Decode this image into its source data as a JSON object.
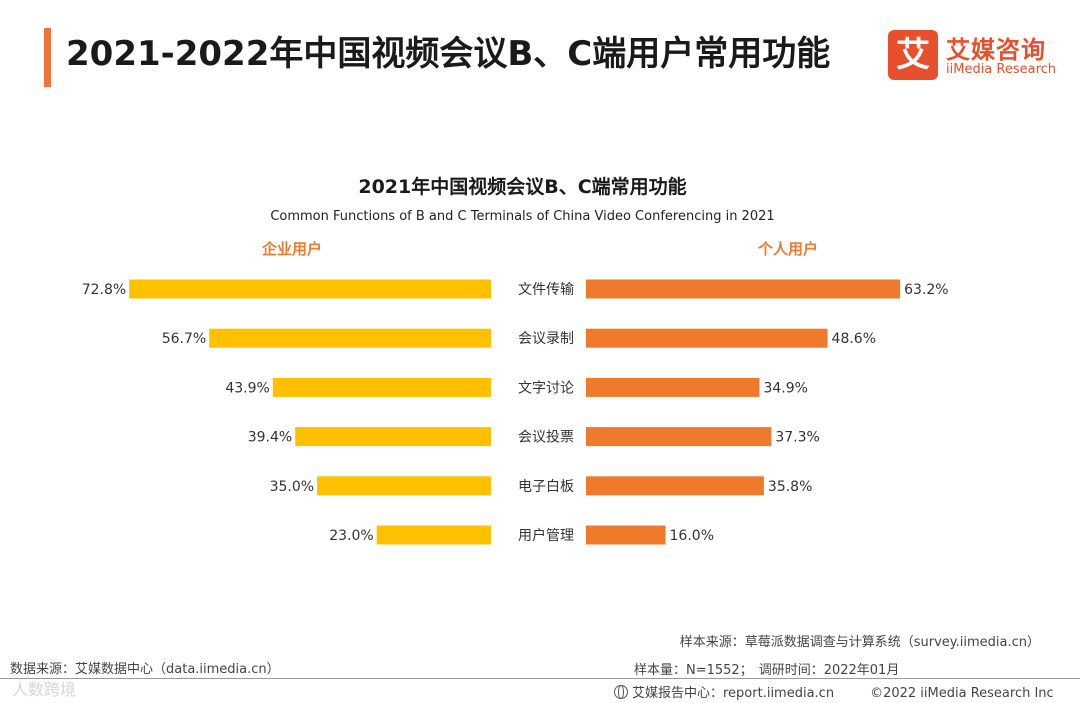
{
  "header": {
    "title": "2021-2022年中国视频会议B、C端用户常用功能",
    "logo_mark": "艾",
    "logo_cn": "艾媒咨询",
    "logo_en": "iiMedia Research"
  },
  "chart_data": {
    "type": "bar",
    "title": "2021年中国视频会议B、C端常用功能",
    "subtitle": "Common Functions of B and C Terminals of China Video Conferencing in 2021",
    "categories": [
      "文件传输",
      "会议录制",
      "文字讨论",
      "会议投票",
      "电子白板",
      "用户管理"
    ],
    "series": [
      {
        "name": "企业用户",
        "values": [
          72.8,
          56.7,
          43.9,
          39.4,
          35.0,
          23.0
        ],
        "labels": [
          "72.8%",
          "56.7%",
          "43.9%",
          "39.4%",
          "35.0%",
          "23.0%"
        ],
        "color": "#ffc000"
      },
      {
        "name": "个人用户",
        "values": [
          63.2,
          48.6,
          34.9,
          37.3,
          35.8,
          16.0
        ],
        "labels": [
          "63.2%",
          "48.6%",
          "34.9%",
          "37.3%",
          "35.8%",
          "16.0%"
        ],
        "color": "#f07a2c"
      }
    ],
    "orientation": "horizontal-butterfly",
    "unit": "%"
  },
  "footer": {
    "data_source": "数据来源：艾媒数据中心（data.iimedia.cn）",
    "sample_source": "样本来源：草莓派数据调查与计算系统（survey.iimedia.cn）",
    "sample_size": "样本量：N=1552；",
    "survey_time": "调研时间：2022年01月",
    "report_center": "艾媒报告中心：report.iimedia.cn",
    "copyright": "©2022  iiMedia Research  Inc",
    "watermark": "人数跨境"
  }
}
